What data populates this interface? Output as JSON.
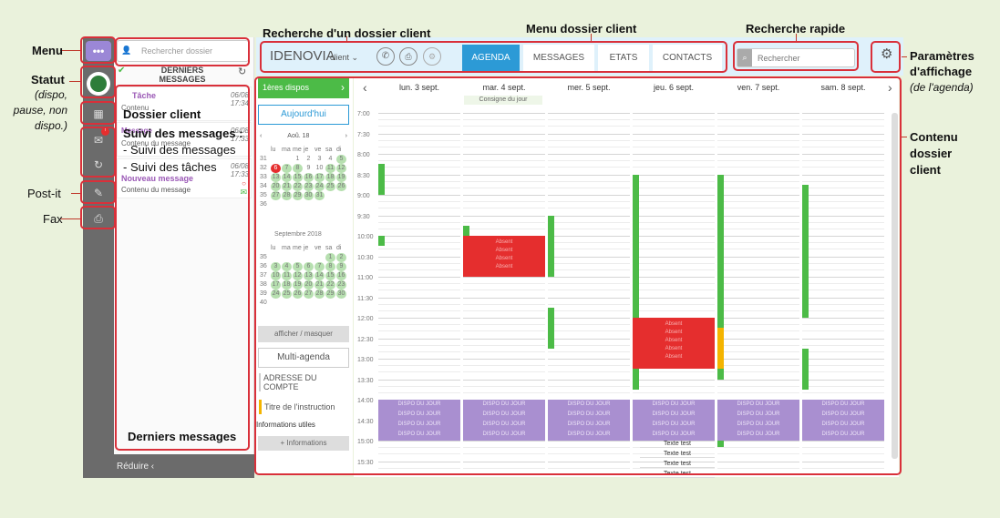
{
  "annotations": {
    "menu": "Menu",
    "statut": "Statut",
    "statut_desc": "(dispo, pause, non dispo.)",
    "dossier_client": "Dossier client",
    "suivi": "Suivi des messages :",
    "suivi_messages": "- Suivi des messages",
    "suivi_taches": "- Suivi des tâches",
    "postit": "Post-it",
    "fax": "Fax",
    "derniers": "Derniers messages",
    "recherche_dossier": "Recherche d'un dossier client",
    "menu_dossier": "Menu dossier client",
    "recherche_rapide": "Recherche rapide",
    "param": "Paramètres d'affichage",
    "param_desc": "(de l'agenda)",
    "contenu": "Contenu dossier client"
  },
  "search": {
    "placeholder": "Rechercher dossier",
    "quick_placeholder": "Rechercher"
  },
  "panel": {
    "title": "DERNIERS MESSAGES",
    "items": [
      {
        "title": "Tâche",
        "sub": "Contenu",
        "date": "06/08",
        "time": "17:34"
      },
      {
        "title": "Message",
        "sub": "Contenu du message",
        "date": "06/08",
        "time": "17:33"
      },
      {
        "title": "Nouveau message",
        "sub": "Contenu du message",
        "date": "06/08",
        "time": "17:33"
      }
    ],
    "reduce": "Réduire"
  },
  "client": {
    "name": "IDENOVIA",
    "type": "client"
  },
  "tabs": [
    "AGENDA",
    "MESSAGES",
    "ETATS",
    "CONTACTS"
  ],
  "cal": {
    "dispos": "1ères dispos",
    "today": "Aujourd'hui",
    "month1": "Aoû. 18",
    "month2": "Septembre 2018",
    "days": [
      "lu",
      "ma",
      "me",
      "je",
      "ve",
      "sa",
      "di"
    ],
    "toggle": "afficher / masquer",
    "multi": "Multi-agenda",
    "address": "ADRESSE DU COMPTE",
    "instruction": "Titre de l'instruction",
    "infos": "Informations utiles",
    "more": "+ Informations"
  },
  "days": [
    "lun. 3 sept.",
    "mar. 4 sept.",
    "mer. 5 sept.",
    "jeu. 6 sept.",
    "ven. 7 sept.",
    "sam. 8 sept."
  ],
  "consigne": "Consigne du jour",
  "hours": [
    "7:00",
    "7:30",
    "8:00",
    "8:30",
    "9:00",
    "9:30",
    "10:00",
    "10:30",
    "11:00",
    "11:30",
    "12:00",
    "12:30",
    "13:00",
    "13:30",
    "14:00",
    "14:30",
    "15:00",
    "15:30"
  ],
  "dispo": "DISPO DU JOUR",
  "absent": "Absent",
  "texte": "Texte test",
  "colors": {
    "green": "#4cbb47",
    "red": "#e52e2e",
    "purple": "#a98fd0",
    "accent": "#2c9ad6",
    "orange": "#f4b400"
  }
}
